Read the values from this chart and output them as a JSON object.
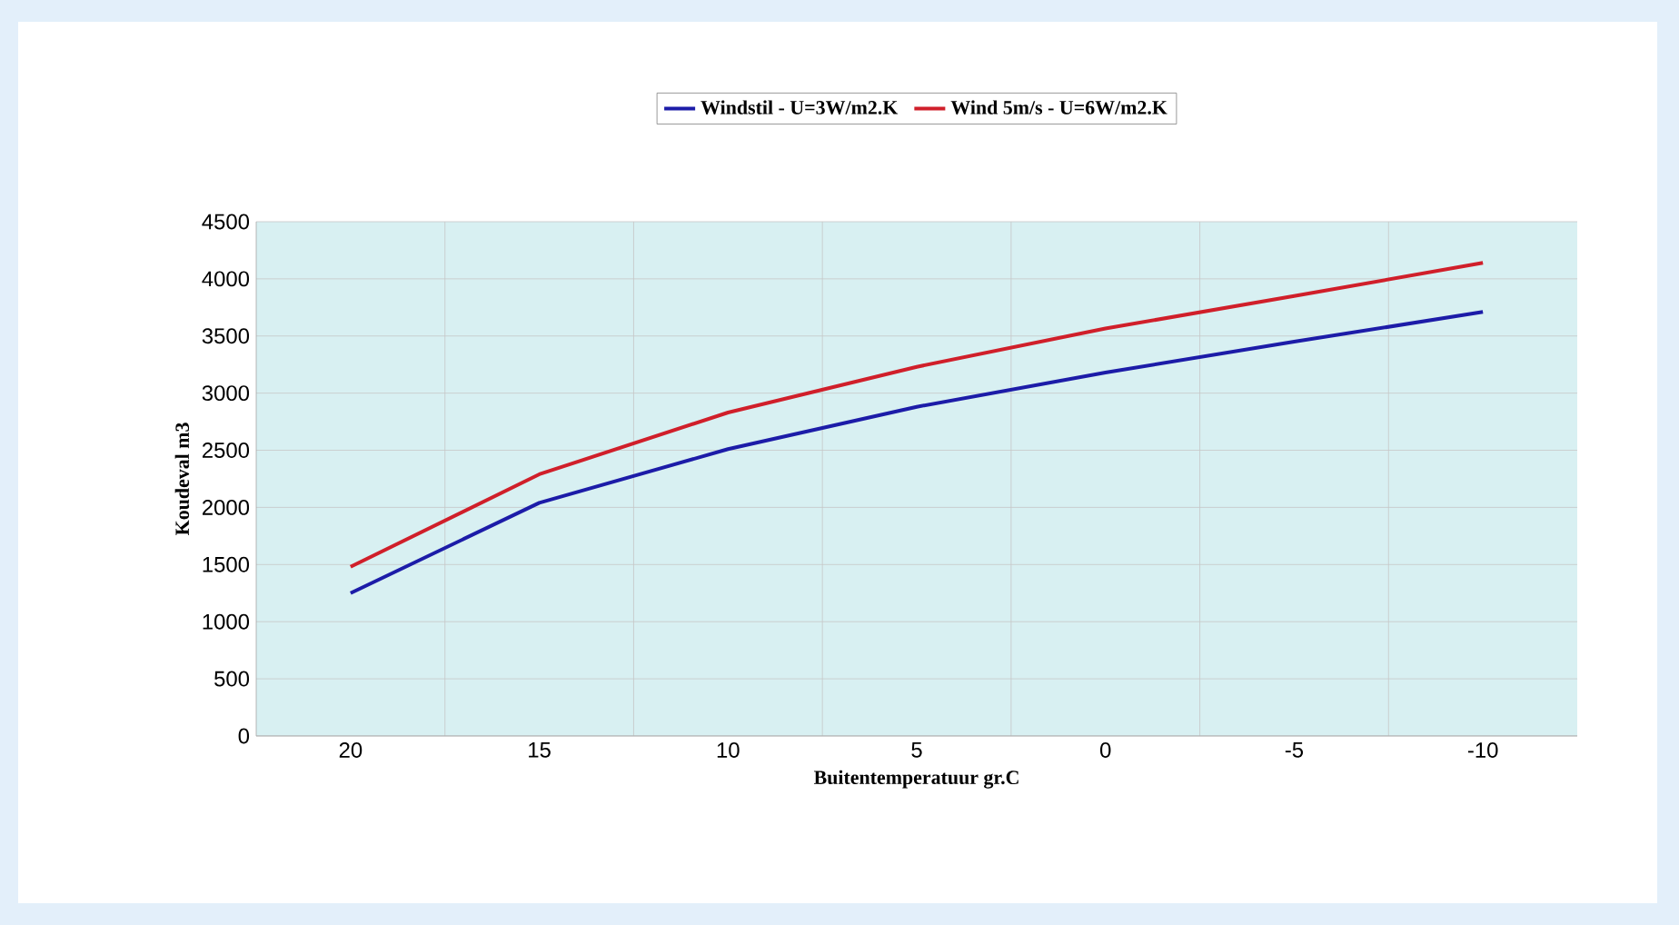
{
  "chart_data": {
    "type": "line",
    "xlabel": "Buitentemperatuur gr.C",
    "ylabel": "Koudeval m3",
    "categories": [
      "20",
      "15",
      "10",
      "5",
      "0",
      "-5",
      "-10"
    ],
    "series": [
      {
        "name": "Windstil - U=3W/m2.K",
        "color": "#1c1ca8",
        "values": [
          1250,
          2040,
          2510,
          2880,
          3180,
          3450,
          3710
        ]
      },
      {
        "name": "Wind 5m/s - U=6W/m2.K",
        "color": "#d01f2a",
        "values": [
          1480,
          2290,
          2830,
          3230,
          3565,
          3850,
          4140
        ]
      }
    ],
    "ylim": [
      0,
      4500
    ],
    "yticks": [
      0,
      500,
      1000,
      1500,
      2000,
      2500,
      3000,
      3500,
      4000,
      4500
    ],
    "grid": true,
    "legend": "top",
    "marker": "none",
    "line_style": "solid"
  }
}
